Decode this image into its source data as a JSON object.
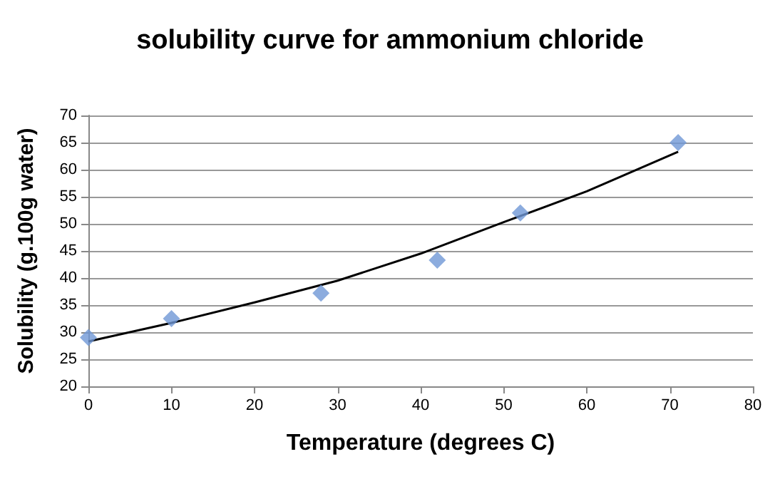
{
  "chart_data": {
    "type": "scatter",
    "title": "solubility curve for ammonium chloride",
    "xlabel": "Temperature (degrees C)",
    "ylabel": "Solubility (g.100g water)",
    "x": [
      0,
      10,
      28,
      42,
      52,
      71
    ],
    "series": [
      {
        "color": "#6f97d6",
        "marker": "diamond",
        "values": [
          29,
          32.5,
          37.2,
          43.3,
          52,
          65
        ]
      },
      {
        "type": "line",
        "color": "#000000",
        "marker": "none",
        "line_style": "solid",
        "x": [
          0,
          10,
          20,
          30,
          40,
          50,
          60,
          71
        ],
        "values": [
          28.3,
          31.7,
          35.5,
          39.5,
          44.5,
          50.3,
          56,
          63.3
        ]
      }
    ],
    "xlim": [
      0,
      80
    ],
    "xticks": [
      0,
      10,
      20,
      30,
      40,
      50,
      60,
      70,
      80
    ],
    "ylim": [
      20,
      70
    ],
    "yticks": [
      20,
      25,
      30,
      35,
      40,
      45,
      50,
      55,
      60,
      65,
      70
    ],
    "grid": "y"
  }
}
